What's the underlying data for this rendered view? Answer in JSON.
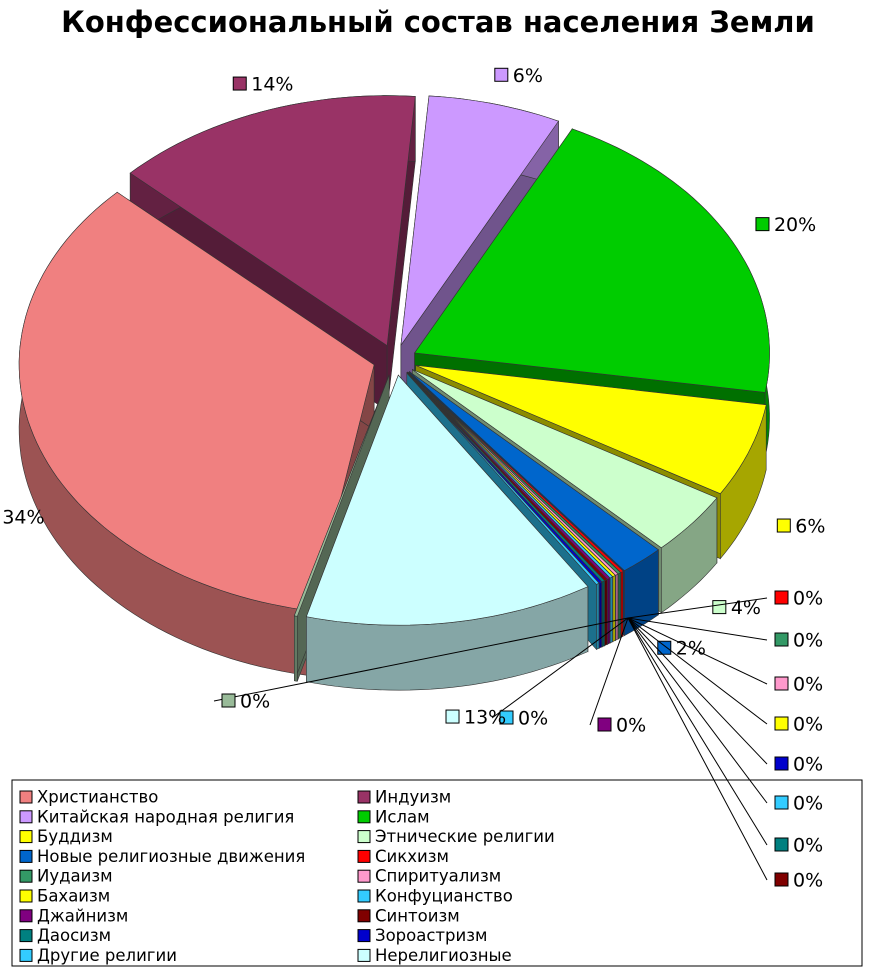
{
  "chart_data": {
    "type": "pie",
    "title": "Конфессиональный состав населения Земли",
    "categories": [
      "Христианство",
      "Индуизм",
      "Китайская народная религия",
      "Ислам",
      "Буддизм",
      "Этнические религии",
      "Новые религиозные движения",
      "Сикхизм",
      "Иудаизм",
      "Спиритуализм",
      "Бахаизм",
      "Конфуцианство",
      "Джайнизм",
      "Синтоизм",
      "Даосизм",
      "Зороастризм",
      "Другие религии",
      "Нерелигиозные",
      null
    ],
    "values": [
      34,
      14,
      6,
      20,
      6,
      4,
      2,
      0,
      0,
      0,
      0,
      0,
      0,
      0,
      0,
      0,
      0,
      13,
      0
    ],
    "value_labels": [
      "34%",
      "14%",
      "6%",
      "20%",
      "6%",
      "4%",
      "2%",
      "0%",
      "0%",
      "0%",
      "0%",
      "0%",
      "0%",
      "0%",
      "0%",
      "0%",
      "0%",
      "13%",
      "0%"
    ],
    "colors": [
      "#f08080",
      "#993366",
      "#cc99ff",
      "#00cc00",
      "#ffff00",
      "#ccffcc",
      "#0066cc",
      "#ff0000",
      "#339966",
      "#ff99cc",
      "#ffff00",
      "#33ccff",
      "#800080",
      "#800000",
      "#008080",
      "#0000cc",
      "#33ccff",
      "#ccffff",
      "#99bb99"
    ]
  }
}
